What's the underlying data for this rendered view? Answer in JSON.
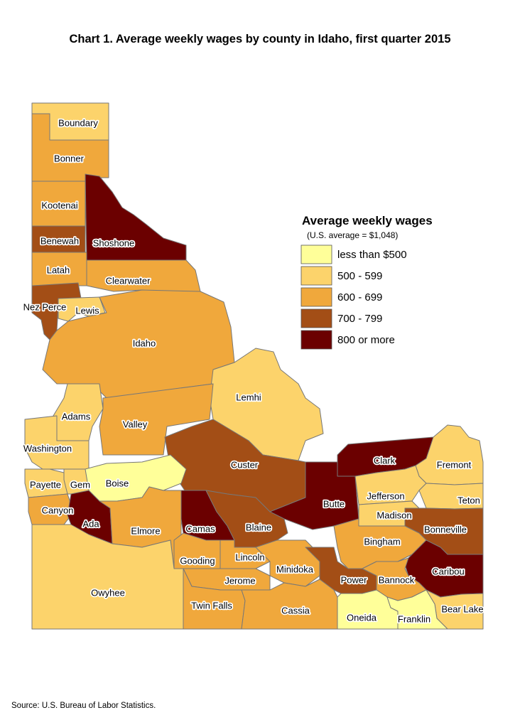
{
  "title": "Chart 1. Average weekly wages by county in Idaho, first quarter 2015",
  "source": "Source: U.S. Bureau of Labor Statistics.",
  "legend": {
    "title": "Average weekly wages",
    "subtitle": "(U.S. average = $1,048)",
    "classes": [
      {
        "label": "less than $500",
        "color": "#ffff99"
      },
      {
        "label": "500 - 599",
        "color": "#fcd36b"
      },
      {
        "label": "600 - 699",
        "color": "#f0a83c"
      },
      {
        "label": "700 - 799",
        "color": "#a34e16"
      },
      {
        "label": "800 or more",
        "color": "#6b0000"
      }
    ]
  },
  "counties": [
    {
      "name": "Boundary",
      "class": "500 - 599"
    },
    {
      "name": "Bonner",
      "class": "600 - 699"
    },
    {
      "name": "Kootenai",
      "class": "600 - 699"
    },
    {
      "name": "Benewah",
      "class": "700 - 799"
    },
    {
      "name": "Shoshone",
      "class": "800 or more"
    },
    {
      "name": "Latah",
      "class": "600 - 699"
    },
    {
      "name": "Clearwater",
      "class": "600 - 699"
    },
    {
      "name": "Nez Perce",
      "class": "700 - 799"
    },
    {
      "name": "Lewis",
      "class": "500 - 599"
    },
    {
      "name": "Idaho",
      "class": "600 - 699"
    },
    {
      "name": "Lemhi",
      "class": "500 - 599"
    },
    {
      "name": "Adams",
      "class": "500 - 599"
    },
    {
      "name": "Valley",
      "class": "600 - 699"
    },
    {
      "name": "Washington",
      "class": "500 - 599"
    },
    {
      "name": "Custer",
      "class": "700 - 799"
    },
    {
      "name": "Clark",
      "class": "800 or more"
    },
    {
      "name": "Fremont",
      "class": "500 - 599"
    },
    {
      "name": "Payette",
      "class": "500 - 599"
    },
    {
      "name": "Gem",
      "class": "500 - 599"
    },
    {
      "name": "Boise",
      "class": "less than $500"
    },
    {
      "name": "Butte",
      "class": "800 or more"
    },
    {
      "name": "Jefferson",
      "class": "500 - 599"
    },
    {
      "name": "Teton",
      "class": "500 - 599"
    },
    {
      "name": "Canyon",
      "class": "600 - 699"
    },
    {
      "name": "Ada",
      "class": "800 or more"
    },
    {
      "name": "Elmore",
      "class": "600 - 699"
    },
    {
      "name": "Camas",
      "class": "800 or more"
    },
    {
      "name": "Blaine",
      "class": "700 - 799"
    },
    {
      "name": "Madison",
      "class": "500 - 599"
    },
    {
      "name": "Bonneville",
      "class": "700 - 799"
    },
    {
      "name": "Bingham",
      "class": "600 - 699"
    },
    {
      "name": "Gooding",
      "class": "600 - 699"
    },
    {
      "name": "Lincoln",
      "class": "600 - 699"
    },
    {
      "name": "Minidoka",
      "class": "600 - 699"
    },
    {
      "name": "Caribou",
      "class": "800 or more"
    },
    {
      "name": "Jerome",
      "class": "600 - 699"
    },
    {
      "name": "Power",
      "class": "700 - 799"
    },
    {
      "name": "Bannock",
      "class": "600 - 699"
    },
    {
      "name": "Owyhee",
      "class": "500 - 599"
    },
    {
      "name": "Twin Falls",
      "class": "600 - 699"
    },
    {
      "name": "Cassia",
      "class": "600 - 699"
    },
    {
      "name": "Bear Lake",
      "class": "500 - 599"
    },
    {
      "name": "Oneida",
      "class": "less than $500"
    },
    {
      "name": "Franklin",
      "class": "less than $500"
    }
  ]
}
